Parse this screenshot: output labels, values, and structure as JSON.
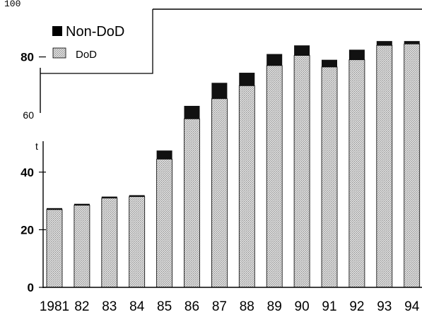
{
  "chart_data": {
    "type": "bar",
    "stacked": true,
    "categories": [
      "1981",
      "82",
      "83",
      "84",
      "85",
      "86",
      "87",
      "88",
      "89",
      "90",
      "91",
      "92",
      "93",
      "94"
    ],
    "series": [
      {
        "name": "DoD",
        "values": [
          27,
          28.5,
          31,
          31.5,
          44.5,
          58.5,
          65.5,
          70,
          77,
          80.5,
          76.5,
          79,
          84,
          84.5
        ],
        "color": "#dddddd",
        "pattern": "stipple"
      },
      {
        "name": "Non-DoD",
        "values": [
          0.5,
          0.5,
          0.5,
          0.5,
          3,
          4.5,
          5.5,
          4.5,
          4,
          3.5,
          2.5,
          3.5,
          1.5,
          1
        ],
        "color": "#111111",
        "pattern": "solid"
      }
    ],
    "title": "",
    "xlabel": "",
    "ylabel": "",
    "ylim": [
      0,
      100
    ],
    "yticks": [
      "0",
      "20",
      "40",
      "60",
      "80",
      "100"
    ],
    "legend": {
      "position": "top-left",
      "entries": [
        "Non-DoD",
        "DoD"
      ]
    },
    "axis_artifacts": [
      "t"
    ],
    "grid": false
  }
}
